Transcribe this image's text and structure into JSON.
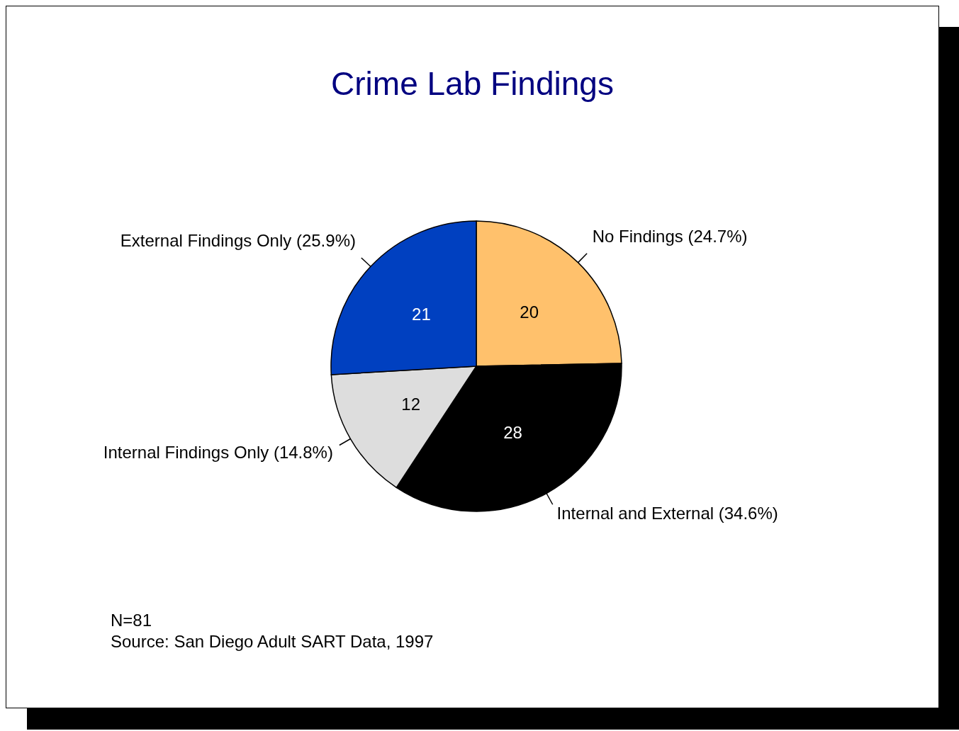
{
  "chart_data": {
    "type": "pie",
    "title": "Crime Lab Findings",
    "categories": [
      "No Findings  (24.7%)",
      "Internal and External   (34.6%)",
      "Internal Findings Only  (14.8%)",
      "External Findings Only  (25.9%)"
    ],
    "values": [
      20,
      28,
      12,
      21
    ],
    "colors": [
      "#ffc16c",
      "#000000",
      "#dddddd",
      "#0040c0"
    ],
    "data_labels": true,
    "annotations": [
      "N=81",
      "Source: San Diego Adult SART Data, 1997"
    ]
  }
}
